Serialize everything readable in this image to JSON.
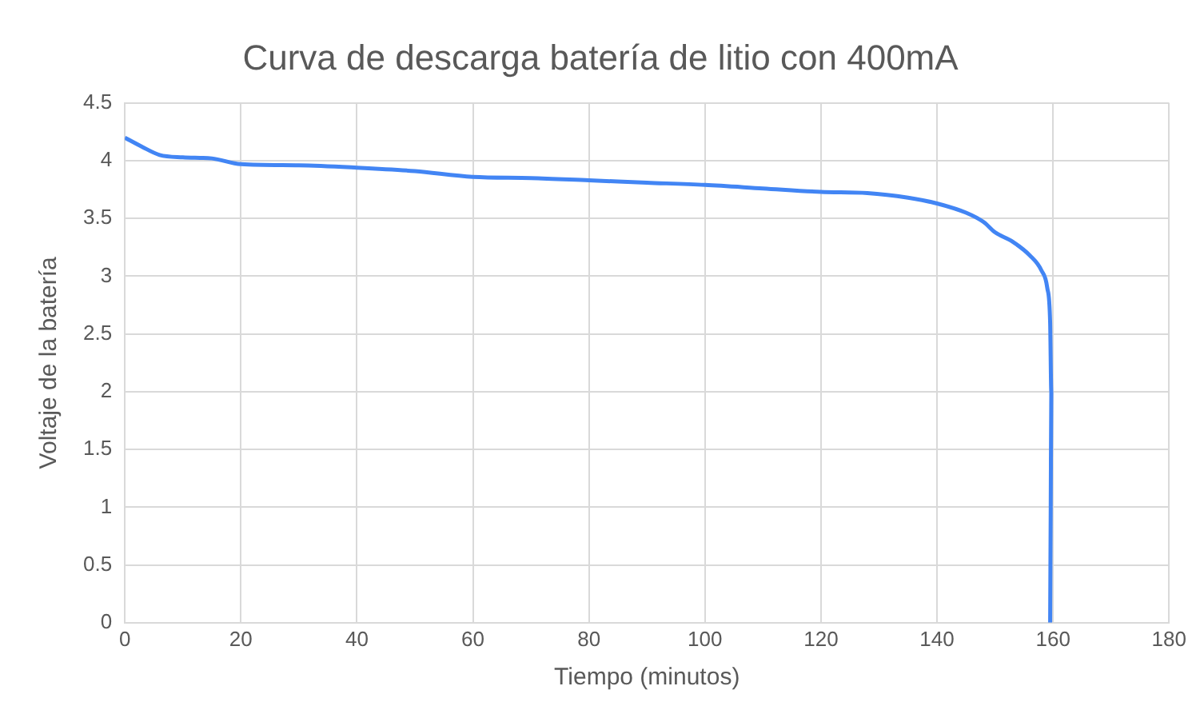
{
  "chart_data": {
    "type": "line",
    "title": "Curva de descarga batería de litio con 400mA",
    "xlabel": "Tiempo (minutos)",
    "ylabel": "Voltaje de la batería",
    "xlim": [
      0,
      180
    ],
    "xticks": [
      0,
      20,
      40,
      60,
      80,
      100,
      120,
      140,
      160,
      180
    ],
    "ylim": [
      0,
      4.5
    ],
    "yticks": [
      0,
      0.5,
      1,
      1.5,
      2,
      2.5,
      3,
      3.5,
      4,
      4.5
    ],
    "grid": true,
    "legend": false,
    "marker": "none",
    "line_style": "solid",
    "series": [
      {
        "color": "#4285f4",
        "x": [
          0,
          3,
          6,
          10,
          15,
          20,
          30,
          40,
          50,
          60,
          70,
          80,
          90,
          100,
          110,
          120,
          128,
          135,
          140,
          145,
          148,
          150,
          153,
          156,
          158,
          159,
          159.5,
          159.7,
          159.6,
          159.5
        ],
        "values": [
          4.2,
          4.12,
          4.05,
          4.03,
          4.02,
          3.97,
          3.96,
          3.94,
          3.91,
          3.86,
          3.85,
          3.83,
          3.81,
          3.79,
          3.76,
          3.73,
          3.72,
          3.68,
          3.63,
          3.55,
          3.47,
          3.38,
          3.3,
          3.18,
          3.05,
          2.9,
          2.6,
          2.0,
          1.0,
          0
        ]
      }
    ]
  }
}
